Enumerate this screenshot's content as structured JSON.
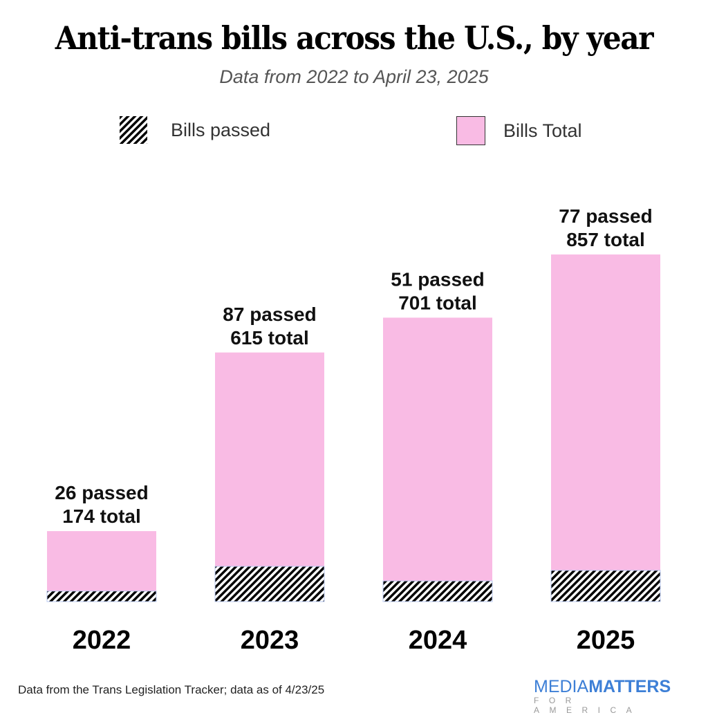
{
  "chart_data": {
    "type": "bar",
    "stacked_overlay": true,
    "title": "Anti-trans bills across the U.S., by year",
    "subtitle": "Data from 2022 to April 23, 2025",
    "categories": [
      "2022",
      "2023",
      "2024",
      "2025"
    ],
    "series": [
      {
        "name": "Bills passed",
        "values": [
          26,
          87,
          51,
          77
        ],
        "pattern": "diagonal-hatch",
        "color": "#000000"
      },
      {
        "name": "Bills Total",
        "values": [
          174,
          615,
          701,
          857
        ],
        "color": "#f9bbe4"
      }
    ],
    "data_labels": [
      {
        "line1": "26 passed",
        "line2": "174 total"
      },
      {
        "line1": "87 passed",
        "line2": "615 total"
      },
      {
        "line1": "51 passed",
        "line2": "701 total"
      },
      {
        "line1": "77 passed",
        "line2": "857 total"
      }
    ],
    "xlabel": "",
    "ylabel": "",
    "ylim": [
      0,
      857
    ],
    "grid": false,
    "legend_position": "top"
  },
  "legend": {
    "passed_label": "Bills passed",
    "total_label": "Bills Total"
  },
  "footer": {
    "source": "Data from the Trans Legislation Tracker; data as of 4/23/25"
  },
  "logo": {
    "word1": "MEDIA",
    "word2": "MATTERS",
    "tagline": "FOR AMERICA",
    "color": "#3d7fd6"
  }
}
